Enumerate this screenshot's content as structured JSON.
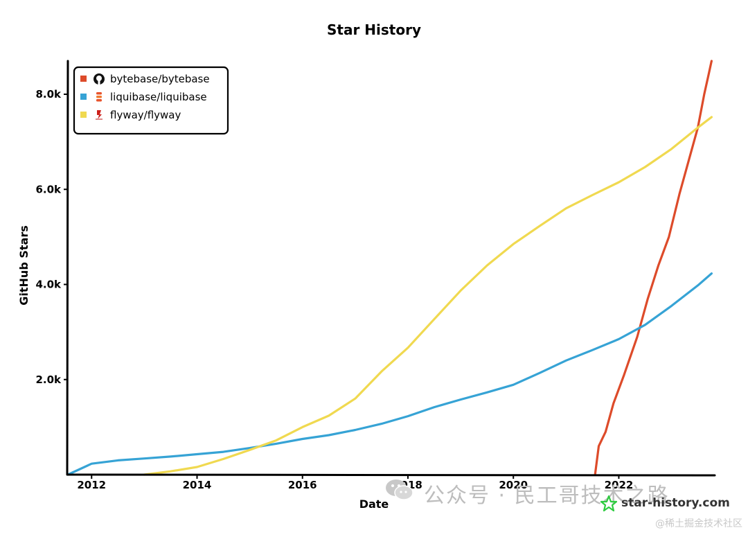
{
  "chart_data": {
    "type": "line",
    "title": "Star History",
    "xlabel": "Date",
    "ylabel": "GitHub Stars",
    "xlim": [
      2011.55,
      2023.82
    ],
    "ylim": [
      0,
      8700
    ],
    "x_ticks": [
      {
        "value": 2012,
        "label": "2012"
      },
      {
        "value": 2014,
        "label": "2014"
      },
      {
        "value": 2016,
        "label": "2016"
      },
      {
        "value": 2018,
        "label": "2018"
      },
      {
        "value": 2020,
        "label": "2020"
      },
      {
        "value": 2022,
        "label": "2022"
      }
    ],
    "y_ticks": [
      {
        "value": 2000,
        "label": "2.0k"
      },
      {
        "value": 4000,
        "label": "4.0k"
      },
      {
        "value": 6000,
        "label": "6.0k"
      },
      {
        "value": 8000,
        "label": "8.0k"
      }
    ],
    "legend_position": "top-left",
    "series": [
      {
        "name": "bytebase/bytebase",
        "color": "#dd4b2a",
        "icon": "github-icon",
        "points": [
          [
            2021.55,
            0
          ],
          [
            2021.62,
            600
          ],
          [
            2021.75,
            900
          ],
          [
            2021.9,
            1500
          ],
          [
            2022.1,
            2100
          ],
          [
            2022.35,
            2900
          ],
          [
            2022.55,
            3700
          ],
          [
            2022.75,
            4400
          ],
          [
            2022.95,
            5000
          ],
          [
            2023.15,
            5900
          ],
          [
            2023.35,
            6700
          ],
          [
            2023.5,
            7300
          ],
          [
            2023.62,
            8000
          ],
          [
            2023.7,
            8400
          ],
          [
            2023.76,
            8700
          ]
        ]
      },
      {
        "name": "liquibase/liquibase",
        "color": "#36a3d5",
        "icon": "liquibase-icon",
        "points": [
          [
            2011.55,
            0
          ],
          [
            2012.0,
            230
          ],
          [
            2012.5,
            300
          ],
          [
            2013.0,
            340
          ],
          [
            2013.5,
            380
          ],
          [
            2014.0,
            430
          ],
          [
            2014.5,
            480
          ],
          [
            2015.0,
            560
          ],
          [
            2015.5,
            650
          ],
          [
            2016.0,
            750
          ],
          [
            2016.5,
            830
          ],
          [
            2017.0,
            940
          ],
          [
            2017.5,
            1070
          ],
          [
            2018.0,
            1230
          ],
          [
            2018.5,
            1420
          ],
          [
            2019.0,
            1580
          ],
          [
            2019.5,
            1730
          ],
          [
            2020.0,
            1890
          ],
          [
            2020.5,
            2140
          ],
          [
            2021.0,
            2400
          ],
          [
            2021.5,
            2620
          ],
          [
            2022.0,
            2850
          ],
          [
            2022.5,
            3150
          ],
          [
            2023.0,
            3550
          ],
          [
            2023.5,
            3980
          ],
          [
            2023.76,
            4230
          ]
        ]
      },
      {
        "name": "flyway/flyway",
        "color": "#f0d950",
        "icon": "flyway-icon",
        "points": [
          [
            2013.0,
            0
          ],
          [
            2013.5,
            70
          ],
          [
            2014.0,
            160
          ],
          [
            2014.5,
            330
          ],
          [
            2015.0,
            520
          ],
          [
            2015.5,
            720
          ],
          [
            2016.0,
            1000
          ],
          [
            2016.5,
            1240
          ],
          [
            2017.0,
            1600
          ],
          [
            2017.5,
            2170
          ],
          [
            2018.0,
            2670
          ],
          [
            2018.5,
            3270
          ],
          [
            2019.0,
            3870
          ],
          [
            2019.5,
            4400
          ],
          [
            2020.0,
            4850
          ],
          [
            2020.5,
            5230
          ],
          [
            2021.0,
            5600
          ],
          [
            2021.5,
            5880
          ],
          [
            2022.0,
            6150
          ],
          [
            2022.5,
            6470
          ],
          [
            2023.0,
            6850
          ],
          [
            2023.5,
            7300
          ],
          [
            2023.76,
            7520
          ]
        ]
      }
    ]
  },
  "watermarks": {
    "wechat_text": "公众号 · 民工哥技术之路",
    "site": "star-history.com",
    "footer": "@稀土掘金技术社区"
  }
}
